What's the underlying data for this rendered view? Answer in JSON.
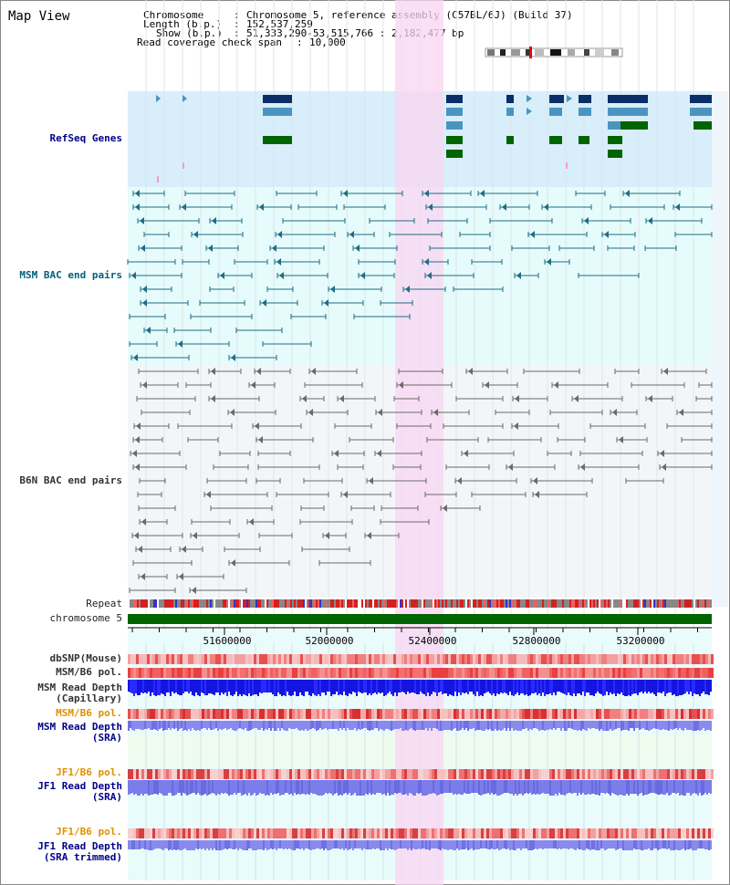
{
  "title": "Map View",
  "info": {
    "chromosome_key": "Chromosome",
    "chromosome_val": "Chromosome 5, reference assembly (C57BL/6J) (Build 37)",
    "length_key": "Length (b.p.)",
    "length_val": "152,537,259",
    "show_key": "Show (b.p.)",
    "show_val": "51,333,290-53,515,766 : 2,182,477 bp",
    "read_key": "Read coverage check span",
    "read_val": "10,000"
  },
  "tracks": {
    "refseq": "RefSeq Genes",
    "msm_bac": "MSM BAC end pairs",
    "b6n_bac": "B6N BAC end pairs",
    "repeat": "Repeat",
    "chromosome": "chromosome 5",
    "dbsnp": "dbSNP(Mouse)",
    "msm_b6_pol_1": "MSM/B6 pol.",
    "msm_read_cap_1": "MSM Read Depth",
    "msm_read_cap_2": "(Capillary)",
    "msm_b6_pol_2": "MSM/B6 pol.",
    "msm_read_sra_1": "MSM Read Depth",
    "msm_read_sra_2": "(SRA)",
    "jf1_b6_pol_1": "JF1/B6 pol.",
    "jf1_read_sra_1": "JF1 Read Depth",
    "jf1_read_sra_2": "(SRA)",
    "jf1_b6_pol_2": "JF1/B6 pol.",
    "jf1_read_trim_1": "JF1 Read Depth",
    "jf1_read_trim_2": "(SRA trimmed)"
  },
  "axis": {
    "ticks": [
      "51600000",
      "52000000",
      "52400000",
      "52800000",
      "53200000"
    ]
  },
  "colors": {
    "highlight": "#f9d6f2",
    "refseq_bg": "#d8eefa",
    "msm_bg": "#e6fbfb",
    "b6n_bg": "#f2f6f9",
    "chrom_bar": "#006400",
    "gene_dark": "#0b2e66",
    "gene_light": "#4a95c0",
    "gene_green": "#006400"
  }
}
